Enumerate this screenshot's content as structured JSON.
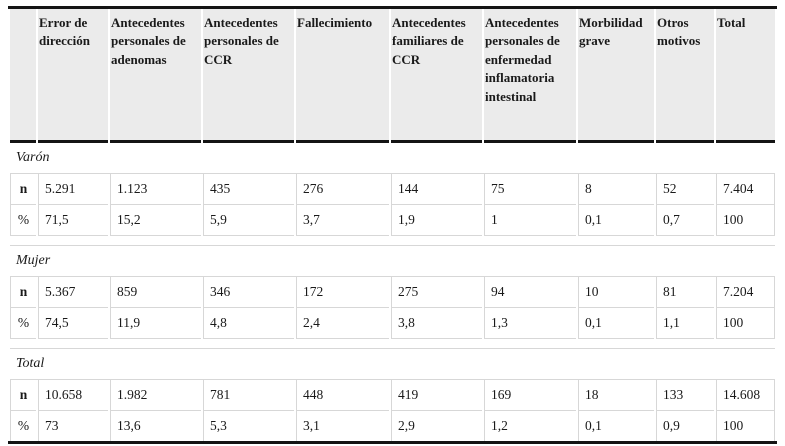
{
  "table": {
    "corner_label": "",
    "columns": [
      "Error de dirección",
      "Antecedentes personales de adenomas",
      "Antecedentes personales de CCR",
      "Fallecimiento",
      "Antecedentes familiares de CCR",
      "Antecedentes personales de enfermedad inflamatoria intestinal",
      "Morbilidad grave",
      "Otros motivos",
      "Total"
    ],
    "sections": [
      {
        "label": "Varón",
        "rows": [
          {
            "label": "n",
            "values": [
              "5.291",
              "1.123",
              "435",
              "276",
              "144",
              "75",
              "8",
              "52",
              "7.404"
            ]
          },
          {
            "label": "%",
            "values": [
              "71,5",
              "15,2",
              "5,9",
              "3,7",
              "1,9",
              "1",
              "0,1",
              "0,7",
              "100"
            ]
          }
        ]
      },
      {
        "label": "Mujer",
        "rows": [
          {
            "label": "n",
            "values": [
              "5.367",
              "859",
              "346",
              "172",
              "275",
              "94",
              "10",
              "81",
              "7.204"
            ]
          },
          {
            "label": "%",
            "values": [
              "74,5",
              "11,9",
              "4,8",
              "2,4",
              "3,8",
              "1,3",
              "0,1",
              "1,1",
              "100"
            ]
          }
        ]
      },
      {
        "label": "Total",
        "rows": [
          {
            "label": "n",
            "values": [
              "10.658",
              "1.982",
              "781",
              "448",
              "419",
              "169",
              "18",
              "133",
              "14.608"
            ]
          },
          {
            "label": "%",
            "values": [
              "73",
              "13,6",
              "5,3",
              "3,1",
              "2,9",
              "1,2",
              "0,1",
              "0,9",
              "100"
            ]
          }
        ]
      }
    ],
    "colors": {
      "header_bg": "#ebebeb",
      "thick_rule": "#141414",
      "thin_border": "#d7d7d7",
      "text": "#1a1a1a"
    }
  }
}
